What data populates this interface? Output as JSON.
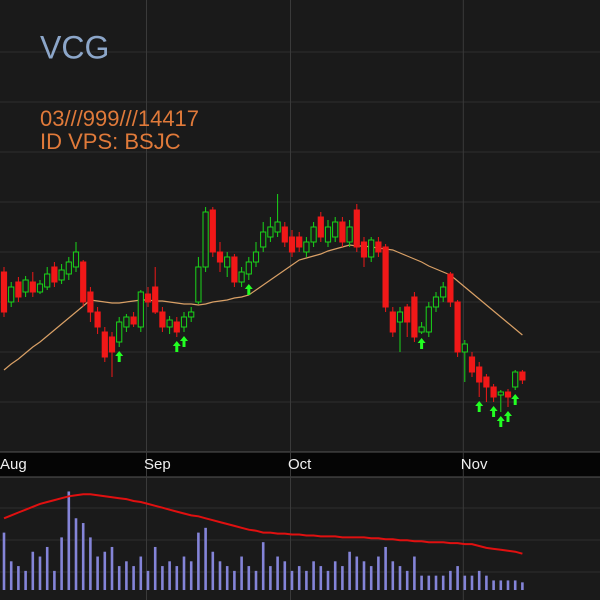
{
  "chart_data": {
    "type": "candlestick",
    "title": "VCG",
    "annotations": [
      "03///999///14417",
      "ID VPS: BSJC"
    ],
    "categories": [
      "Aug",
      null,
      null,
      null,
      null,
      null,
      null,
      null,
      null,
      null,
      null,
      null,
      null,
      null,
      null,
      null,
      null,
      null,
      null,
      null,
      "Sep",
      null,
      null,
      null,
      null,
      null,
      null,
      null,
      null,
      null,
      null,
      null,
      null,
      null,
      null,
      null,
      null,
      null,
      null,
      null,
      "Oct",
      null,
      null,
      null,
      null,
      null,
      null,
      null,
      null,
      null,
      null,
      null,
      null,
      null,
      null,
      null,
      null,
      null,
      null,
      null,
      null,
      null,
      null,
      null,
      "Nov",
      null,
      null,
      null,
      null,
      null,
      null,
      null,
      null
    ],
    "open": [
      180,
      150,
      170,
      160,
      170,
      160,
      165,
      185,
      172,
      178,
      185,
      190,
      160,
      140,
      120,
      115,
      110,
      125,
      135,
      125,
      158,
      165,
      140,
      125,
      130,
      125,
      135,
      150,
      185,
      242,
      200,
      185,
      195,
      170,
      178,
      190,
      205,
      215,
      220,
      225,
      215,
      215,
      200,
      210,
      235,
      210,
      215,
      230,
      210,
      242,
      210,
      195,
      210,
      205,
      140,
      130,
      145,
      155,
      120,
      120,
      145,
      155,
      178,
      150,
      100,
      95,
      85,
      75,
      65,
      57,
      60,
      65,
      80
    ],
    "high": [
      185,
      170,
      175,
      176,
      180,
      172,
      185,
      190,
      188,
      195,
      210,
      192,
      165,
      145,
      125,
      120,
      135,
      138,
      140,
      162,
      165,
      185,
      145,
      136,
      135,
      140,
      145,
      195,
      245,
      245,
      210,
      200,
      198,
      185,
      195,
      210,
      230,
      235,
      258,
      230,
      222,
      220,
      215,
      230,
      240,
      232,
      235,
      235,
      232,
      248,
      215,
      215,
      215,
      208,
      145,
      145,
      148,
      160,
      130,
      150,
      160,
      170,
      180,
      152,
      112,
      100,
      90,
      78,
      68,
      62,
      63,
      82,
      82
    ],
    "low": [
      135,
      145,
      150,
      155,
      155,
      158,
      162,
      165,
      168,
      172,
      180,
      145,
      130,
      118,
      90,
      75,
      105,
      120,
      125,
      120,
      145,
      138,
      120,
      118,
      115,
      120,
      130,
      148,
      180,
      195,
      180,
      175,
      165,
      165,
      172,
      185,
      200,
      210,
      215,
      205,
      195,
      200,
      195,
      205,
      210,
      205,
      210,
      205,
      205,
      200,
      185,
      190,
      195,
      140,
      115,
      100,
      115,
      110,
      118,
      115,
      140,
      150,
      145,
      95,
      70,
      75,
      55,
      50,
      50,
      40,
      45,
      62,
      68
    ],
    "close": [
      140,
      165,
      155,
      172,
      160,
      168,
      178,
      170,
      182,
      190,
      200,
      150,
      140,
      125,
      95,
      100,
      130,
      135,
      128,
      160,
      150,
      140,
      125,
      132,
      120,
      135,
      140,
      185,
      240,
      200,
      190,
      195,
      170,
      180,
      190,
      200,
      220,
      225,
      230,
      210,
      200,
      205,
      210,
      225,
      215,
      225,
      230,
      210,
      225,
      205,
      195,
      212,
      200,
      145,
      120,
      140,
      130,
      115,
      125,
      145,
      155,
      165,
      150,
      100,
      108,
      80,
      70,
      65,
      55,
      60,
      55,
      80,
      72
    ],
    "up_color": "#19d619",
    "down_color": "#f01818",
    "ylim": [
      0,
      452
    ],
    "grid": true,
    "ma": {
      "color": "#d9a066",
      "values": [
        82,
        88,
        93,
        99,
        105,
        110,
        116,
        122,
        128,
        134,
        140,
        146,
        152,
        151,
        150,
        149,
        149,
        150,
        151,
        152,
        152,
        151,
        151,
        150,
        149,
        148,
        148,
        147,
        148,
        150,
        151,
        152,
        154,
        155,
        157,
        162,
        167,
        172,
        177,
        182,
        187,
        192,
        194,
        196,
        198,
        201,
        203,
        205,
        207,
        206,
        206,
        205,
        204,
        203,
        202,
        199,
        196,
        193,
        190,
        186,
        183,
        180,
        177,
        171,
        165,
        159,
        153,
        147,
        141,
        135,
        129,
        123,
        117
      ]
    },
    "buy_signals": [
      16,
      24,
      25,
      34,
      58,
      66,
      68,
      69,
      70,
      71
    ],
    "buy_color": "#22ff22",
    "volume": {
      "color": "#8484d8",
      "ylim": [
        0,
        115
      ],
      "values": [
        60,
        30,
        25,
        20,
        40,
        35,
        45,
        20,
        55,
        103,
        75,
        70,
        55,
        35,
        40,
        45,
        25,
        30,
        25,
        35,
        20,
        45,
        25,
        30,
        25,
        35,
        30,
        60,
        65,
        40,
        30,
        25,
        20,
        35,
        25,
        20,
        50,
        25,
        35,
        30,
        20,
        25,
        20,
        30,
        25,
        20,
        30,
        25,
        40,
        35,
        30,
        25,
        35,
        45,
        30,
        25,
        20,
        35,
        15,
        15,
        15,
        15,
        20,
        25,
        15,
        15,
        20,
        15,
        10,
        10,
        10,
        10,
        8
      ],
      "ma": {
        "color": "#e01010",
        "values": [
          75,
          78,
          81,
          84,
          87,
          90,
          92,
          94,
          96,
          98,
          99,
          100,
          100,
          99,
          98,
          97,
          96,
          95,
          93,
          92,
          90,
          88,
          86,
          84,
          82,
          80,
          78,
          77,
          75,
          73,
          71,
          69,
          67,
          65,
          63,
          62,
          60,
          60,
          59,
          59,
          58,
          58,
          57,
          57,
          56,
          56,
          56,
          55,
          55,
          55,
          55,
          54,
          54,
          53,
          53,
          52,
          52,
          51,
          51,
          50,
          50,
          50,
          49,
          49,
          48,
          48,
          46,
          44,
          43,
          42,
          41,
          40,
          38
        ]
      }
    }
  }
}
